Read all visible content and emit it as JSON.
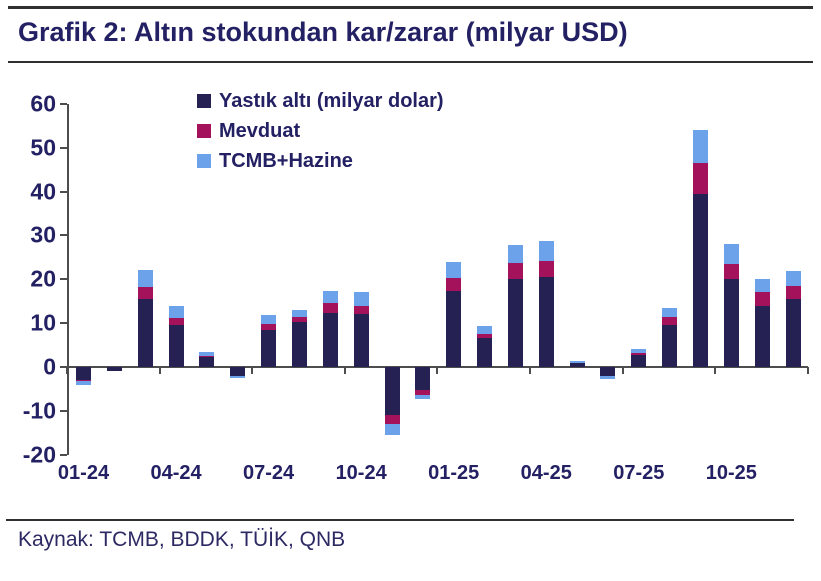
{
  "header": {
    "title": "Grafik 2: Altın stokundan kar/zarar (milyar USD)"
  },
  "footer": {
    "source": "Kaynak: TCMB, BDDK, TÜİK, QNB"
  },
  "chart_data": {
    "type": "bar",
    "stacked": true,
    "title": "Grafik 2: Altın stokundan kar/zarar (milyar USD)",
    "xlabel": "",
    "ylabel": "",
    "ylim": [
      -20,
      60
    ],
    "yticks": [
      60,
      50,
      40,
      30,
      20,
      10,
      0,
      -10,
      -20
    ],
    "grid": false,
    "legend_position": "top-inside",
    "categories": [
      "01-24",
      "02-24",
      "03-24",
      "04-24",
      "05-24",
      "06-24",
      "07-24",
      "08-24",
      "09-24",
      "10-24",
      "11-24",
      "12-24",
      "01-25",
      "02-25",
      "03-25",
      "04-25",
      "05-25",
      "06-25",
      "07-25",
      "08-25",
      "09-25",
      "10-25",
      "11-25",
      "12-25"
    ],
    "x_tick_labels": [
      "01-24",
      "04-24",
      "07-24",
      "10-24",
      "01-25",
      "04-25",
      "07-25",
      "10-25"
    ],
    "series": [
      {
        "name": "Yastık altı (milyar dolar)",
        "color": "#262153",
        "values": [
          -3.0,
          -1.0,
          15.5,
          9.5,
          2.3,
          -2.0,
          8.5,
          10.2,
          12.3,
          12.0,
          -11.0,
          -5.2,
          17.3,
          6.5,
          20.1,
          20.6,
          1.0,
          -2.0,
          2.8,
          9.5,
          39.5,
          20.0,
          14.0,
          15.5
        ]
      },
      {
        "name": "Mevduat",
        "color": "#a4125c",
        "values": [
          -0.2,
          0,
          2.7,
          1.7,
          0.2,
          0,
          1.4,
          1.3,
          2.3,
          2.0,
          -2.0,
          -1.2,
          2.9,
          1.1,
          3.6,
          3.5,
          0,
          0,
          0.5,
          1.8,
          7.0,
          3.5,
          3.0,
          3.0
        ]
      },
      {
        "name": "TCMB+Hazine",
        "color": "#6ca2ea",
        "values": [
          -0.8,
          0,
          4.0,
          2.6,
          1.0,
          -0.5,
          2.0,
          1.5,
          2.8,
          3.0,
          -2.5,
          -1.0,
          3.7,
          1.7,
          4.2,
          4.6,
          0.4,
          -0.7,
          0.7,
          2.2,
          7.5,
          4.5,
          3.0,
          3.5
        ]
      }
    ],
    "colors": {
      "text": "#232063",
      "axis": "#4d4d4d"
    }
  }
}
